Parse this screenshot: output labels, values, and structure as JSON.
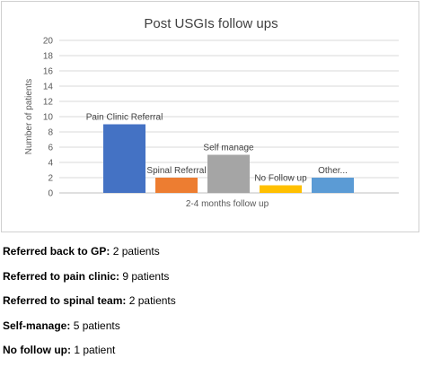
{
  "chart_data": {
    "type": "bar",
    "title": "Post USGIs follow ups",
    "xlabel": "2-4 months follow up",
    "ylabel": "Number of patients",
    "ylim": [
      0,
      20
    ],
    "yticks": [
      0,
      2,
      4,
      6,
      8,
      10,
      12,
      14,
      16,
      18,
      20
    ],
    "grid": true,
    "legend": "none",
    "categories": [
      "Pain Clinic Referral",
      "Spinal Referral",
      "Self manage",
      "No Follow up",
      "Other..."
    ],
    "values": [
      9,
      2,
      5,
      1,
      2
    ],
    "colors": [
      "#4472c4",
      "#ed7d31",
      "#a5a5a5",
      "#ffc000",
      "#5b9bd5"
    ]
  },
  "notes": [
    {
      "label": "Referred back to GP:",
      "value": " 2 patients"
    },
    {
      "label": "Referred to pain clinic:",
      "value": " 9 patients"
    },
    {
      "label": "Referred to spinal team:",
      "value": " 2 patients"
    },
    {
      "label": "Self-manage:",
      "value": " 5 patients"
    },
    {
      "label": "No follow up:",
      "value": " 1 patient"
    }
  ]
}
